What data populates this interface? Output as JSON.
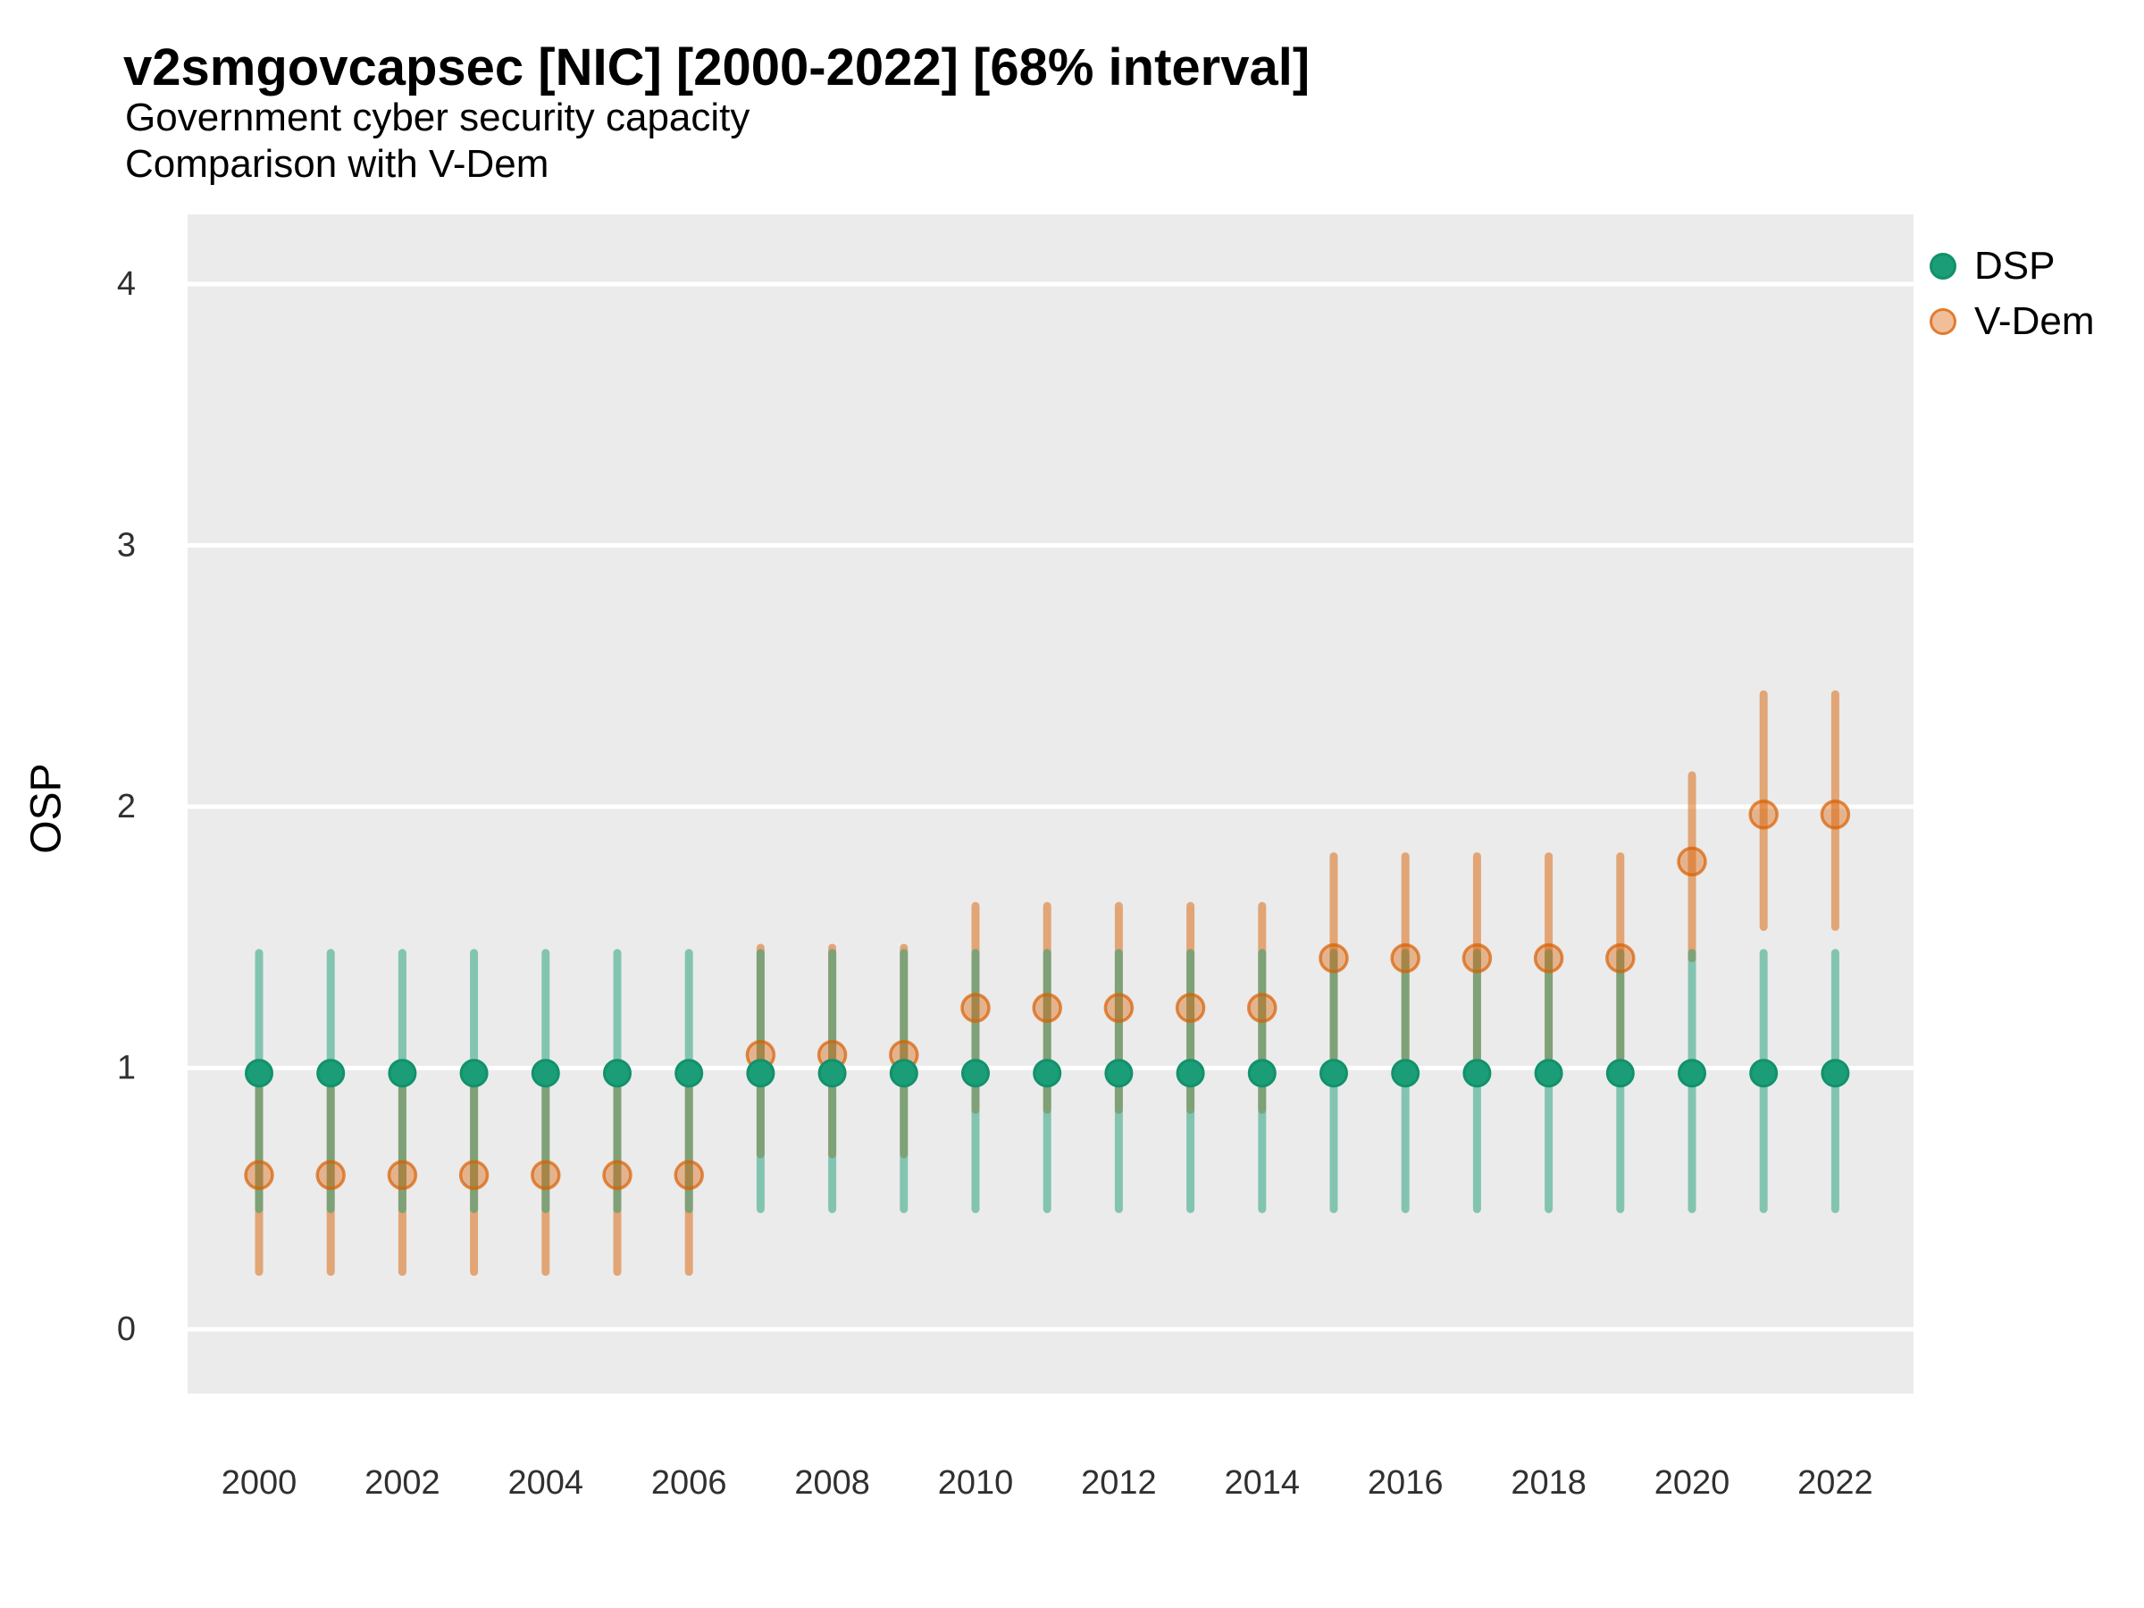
{
  "header": {
    "title": "v2smgovcapsec [NIC] [2000-2022] [68% interval]",
    "subtitle1": "Government cyber security capacity",
    "subtitle2": "Comparison with V-Dem"
  },
  "y_axis_title": "OSP",
  "legend": {
    "items": [
      {
        "label": "DSP",
        "series": "DSP"
      },
      {
        "label": "V-Dem",
        "series": "V-Dem"
      }
    ]
  },
  "colors": {
    "dsp_color": "#1b9e77",
    "dsp_ring": "#12916b",
    "vdem_color": "#d95f02",
    "panel_bg": "#ebebeb",
    "grid_color": "#ffffff",
    "tick_label_color": "#303030",
    "text_color": "#000000"
  },
  "chart_data": {
    "type": "pointrange",
    "title": "v2smgovcapsec [NIC] [2000-2022] [68% interval]",
    "subtitle": [
      "Government cyber security capacity",
      "Comparison with V-Dem"
    ],
    "xlabel": "",
    "ylabel": "OSP",
    "x": [
      2000,
      2001,
      2002,
      2003,
      2004,
      2005,
      2006,
      2007,
      2008,
      2009,
      2010,
      2011,
      2012,
      2013,
      2014,
      2015,
      2016,
      2017,
      2018,
      2019,
      2020,
      2021,
      2022
    ],
    "x_tick_labels": [
      "2000",
      "2002",
      "2004",
      "2006",
      "2008",
      "2010",
      "2012",
      "2014",
      "2016",
      "2018",
      "2020",
      "2022"
    ],
    "y_ticks": [
      0,
      1,
      2,
      3,
      4
    ],
    "ylim_panel": [
      -0.25,
      4.27
    ],
    "grid": "horizontal-major-only",
    "legend_position": "right",
    "interval_level": "68%",
    "series": [
      {
        "name": "DSP",
        "points": [
          {
            "year": 2000,
            "est": 0.98,
            "lo": 0.46,
            "hi": 1.44
          },
          {
            "year": 2001,
            "est": 0.98,
            "lo": 0.46,
            "hi": 1.44
          },
          {
            "year": 2002,
            "est": 0.98,
            "lo": 0.46,
            "hi": 1.44
          },
          {
            "year": 2003,
            "est": 0.98,
            "lo": 0.46,
            "hi": 1.44
          },
          {
            "year": 2004,
            "est": 0.98,
            "lo": 0.46,
            "hi": 1.44
          },
          {
            "year": 2005,
            "est": 0.98,
            "lo": 0.46,
            "hi": 1.44
          },
          {
            "year": 2006,
            "est": 0.98,
            "lo": 0.46,
            "hi": 1.44
          },
          {
            "year": 2007,
            "est": 0.98,
            "lo": 0.46,
            "hi": 1.44
          },
          {
            "year": 2008,
            "est": 0.98,
            "lo": 0.46,
            "hi": 1.44
          },
          {
            "year": 2009,
            "est": 0.98,
            "lo": 0.46,
            "hi": 1.44
          },
          {
            "year": 2010,
            "est": 0.98,
            "lo": 0.46,
            "hi": 1.44
          },
          {
            "year": 2011,
            "est": 0.98,
            "lo": 0.46,
            "hi": 1.44
          },
          {
            "year": 2012,
            "est": 0.98,
            "lo": 0.46,
            "hi": 1.44
          },
          {
            "year": 2013,
            "est": 0.98,
            "lo": 0.46,
            "hi": 1.44
          },
          {
            "year": 2014,
            "est": 0.98,
            "lo": 0.46,
            "hi": 1.44
          },
          {
            "year": 2015,
            "est": 0.98,
            "lo": 0.46,
            "hi": 1.44
          },
          {
            "year": 2016,
            "est": 0.98,
            "lo": 0.46,
            "hi": 1.44
          },
          {
            "year": 2017,
            "est": 0.98,
            "lo": 0.46,
            "hi": 1.44
          },
          {
            "year": 2018,
            "est": 0.98,
            "lo": 0.46,
            "hi": 1.44
          },
          {
            "year": 2019,
            "est": 0.98,
            "lo": 0.46,
            "hi": 1.44
          },
          {
            "year": 2020,
            "est": 0.98,
            "lo": 0.46,
            "hi": 1.44
          },
          {
            "year": 2021,
            "est": 0.98,
            "lo": 0.46,
            "hi": 1.44
          },
          {
            "year": 2022,
            "est": 0.98,
            "lo": 0.46,
            "hi": 1.44
          }
        ]
      },
      {
        "name": "V-Dem",
        "points": [
          {
            "year": 2000,
            "est": 0.59,
            "lo": 0.22,
            "hi": 0.96
          },
          {
            "year": 2001,
            "est": 0.59,
            "lo": 0.22,
            "hi": 0.96
          },
          {
            "year": 2002,
            "est": 0.59,
            "lo": 0.22,
            "hi": 0.96
          },
          {
            "year": 2003,
            "est": 0.59,
            "lo": 0.22,
            "hi": 0.96
          },
          {
            "year": 2004,
            "est": 0.59,
            "lo": 0.22,
            "hi": 0.96
          },
          {
            "year": 2005,
            "est": 0.59,
            "lo": 0.22,
            "hi": 0.96
          },
          {
            "year": 2006,
            "est": 0.59,
            "lo": 0.22,
            "hi": 0.96
          },
          {
            "year": 2007,
            "est": 1.05,
            "lo": 0.67,
            "hi": 1.46
          },
          {
            "year": 2008,
            "est": 1.05,
            "lo": 0.67,
            "hi": 1.46
          },
          {
            "year": 2009,
            "est": 1.05,
            "lo": 0.67,
            "hi": 1.46
          },
          {
            "year": 2010,
            "est": 1.23,
            "lo": 0.84,
            "hi": 1.62
          },
          {
            "year": 2011,
            "est": 1.23,
            "lo": 0.84,
            "hi": 1.62
          },
          {
            "year": 2012,
            "est": 1.23,
            "lo": 0.84,
            "hi": 1.62
          },
          {
            "year": 2013,
            "est": 1.23,
            "lo": 0.84,
            "hi": 1.62
          },
          {
            "year": 2014,
            "est": 1.23,
            "lo": 0.84,
            "hi": 1.62
          },
          {
            "year": 2015,
            "est": 1.42,
            "lo": 1.04,
            "hi": 1.81
          },
          {
            "year": 2016,
            "est": 1.42,
            "lo": 1.04,
            "hi": 1.81
          },
          {
            "year": 2017,
            "est": 1.42,
            "lo": 1.04,
            "hi": 1.81
          },
          {
            "year": 2018,
            "est": 1.42,
            "lo": 1.04,
            "hi": 1.81
          },
          {
            "year": 2019,
            "est": 1.42,
            "lo": 1.04,
            "hi": 1.81
          },
          {
            "year": 2020,
            "est": 1.79,
            "lo": 1.42,
            "hi": 2.12
          },
          {
            "year": 2021,
            "est": 1.97,
            "lo": 1.54,
            "hi": 2.43
          },
          {
            "year": 2022,
            "est": 1.97,
            "lo": 1.54,
            "hi": 2.43
          }
        ]
      }
    ]
  }
}
